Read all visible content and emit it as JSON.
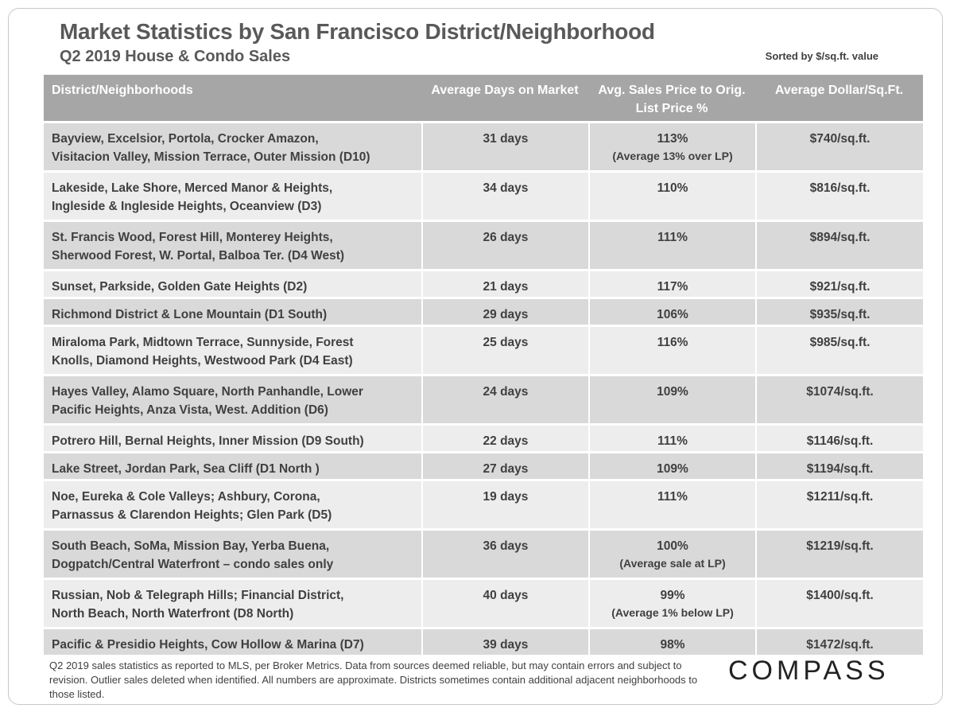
{
  "header": {
    "title": "Market Statistics by San Francisco District/Neighborhood",
    "subtitle": "Q2 2019 House & Condo Sales",
    "sort_note": "Sorted by $/sq.ft. value"
  },
  "table": {
    "columns": [
      "District/Neighborhoods",
      "Average Days on Market",
      "Avg. Sales Price to Orig. List Price %",
      "Average Dollar/Sq.Ft."
    ],
    "rows": [
      {
        "district": [
          "Bayview, Excelsior, Portola, Crocker Amazon,",
          "Visitacion Valley, Mission Terrace, Outer Mission (D10)"
        ],
        "days": "31 days",
        "ratio": "113%",
        "ratio_note": "(Average 13% over LP)",
        "price": "$740/sq.ft."
      },
      {
        "district": [
          "Lakeside, Lake Shore, Merced Manor & Heights,",
          "Ingleside & Ingleside Heights, Oceanview (D3)"
        ],
        "days": "34 days",
        "ratio": "110%",
        "price": "$816/sq.ft."
      },
      {
        "district": [
          "St. Francis Wood, Forest Hill, Monterey Heights,",
          "Sherwood Forest, W. Portal, Balboa Ter. (D4 West)"
        ],
        "days": "26 days",
        "ratio": "111%",
        "price": "$894/sq.ft."
      },
      {
        "district": [
          "Sunset, Parkside, Golden Gate Heights (D2)"
        ],
        "days": "21 days",
        "ratio": "117%",
        "price": "$921/sq.ft."
      },
      {
        "district": [
          "Richmond District & Lone Mountain (D1 South)"
        ],
        "days": "29 days",
        "ratio": "106%",
        "price": "$935/sq.ft."
      },
      {
        "district": [
          "Miraloma Park, Midtown Terrace, Sunnyside, Forest",
          "Knolls, Diamond Heights, Westwood Park (D4 East)"
        ],
        "days": "25 days",
        "ratio": "116%",
        "price": "$985/sq.ft."
      },
      {
        "district": [
          "Hayes Valley, Alamo Square, North Panhandle, Lower",
          "Pacific Heights, Anza Vista, West. Addition (D6)"
        ],
        "days": "24 days",
        "ratio": "109%",
        "price": "$1074/sq.ft."
      },
      {
        "district": [
          "Potrero Hill, Bernal Heights, Inner Mission (D9 South)"
        ],
        "days": "22 days",
        "ratio": "111%",
        "price": "$1146/sq.ft."
      },
      {
        "district": [
          "Lake Street, Jordan Park, Sea Cliff (D1 North )"
        ],
        "days": "27 days",
        "ratio": "109%",
        "price": "$1194/sq.ft."
      },
      {
        "district": [
          "Noe, Eureka & Cole Valleys; Ashbury, Corona,",
          "Parnassus & Clarendon Heights; Glen Park (D5)"
        ],
        "days": "19 days",
        "ratio": "111%",
        "price": "$1211/sq.ft."
      },
      {
        "district": [
          "South Beach, SoMa, Mission Bay, Yerba Buena,",
          "Dogpatch/Central Waterfront – condo sales only"
        ],
        "days": "36 days",
        "ratio": "100%",
        "ratio_note": "(Average sale at LP)",
        "price": "$1219/sq.ft."
      },
      {
        "district": [
          "Russian, Nob & Telegraph Hills; Financial District,",
          "North Beach, North Waterfront (D8 North)"
        ],
        "days": "40 days",
        "ratio": "99%",
        "ratio_note": "(Average 1% below LP)",
        "price": "$1400/sq.ft."
      },
      {
        "district": [
          "Pacific & Presidio Heights, Cow Hollow & Marina (D7)"
        ],
        "days": "39 days",
        "ratio": "98%",
        "price": "$1472/sq.ft."
      }
    ]
  },
  "footer": {
    "note": "Q2 2019 sales statistics as reported to MLS, per Broker Metrics. Data from sources deemed reliable, but may contain errors and subject to revision. Outlier sales deleted when identified. All numbers are approximate. Districts sometimes contain additional adjacent neighborhoods to those listed.",
    "logo": "COMPASS"
  }
}
